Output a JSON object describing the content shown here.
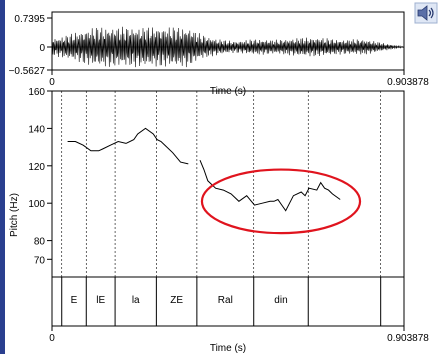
{
  "chart_data": [
    {
      "type": "line",
      "title": "",
      "xlabel": "Time (s)",
      "ylabel": "",
      "x_ticks": [
        "0",
        "0.903878"
      ],
      "y_ticks": [
        "0.7395",
        "0",
        "−0.5627"
      ],
      "xlim": [
        0,
        0.903878
      ],
      "ylim": [
        -0.5627,
        0.7395
      ],
      "grid": false
    },
    {
      "type": "line",
      "title": "",
      "xlabel": "Time (s)",
      "ylabel": "Pitch (Hz)",
      "x_ticks": [
        "0",
        "0.903878"
      ],
      "y_ticks": [
        "160",
        "140",
        "120",
        "100",
        "80",
        "70"
      ],
      "xlim": [
        0,
        0.903878
      ],
      "ylim": [
        70,
        160
      ],
      "series": [
        {
          "x": [
            0.04,
            0.06,
            0.08,
            0.1,
            0.12,
            0.13,
            0.15,
            0.17,
            0.19,
            0.21,
            0.22,
            0.24,
            0.26,
            0.27,
            0.28,
            0.29,
            0.31,
            0.33,
            0.35
          ],
          "y": [
            133,
            133,
            131,
            128,
            128,
            129,
            131,
            133,
            132,
            134,
            137,
            140,
            137,
            134,
            133,
            131,
            127,
            122,
            121
          ]
        },
        {
          "x": [
            0.38,
            0.39,
            0.4,
            0.42,
            0.44,
            0.46,
            0.48,
            0.5,
            0.52,
            0.54,
            0.56,
            0.57,
            0.58,
            0.59,
            0.6,
            0.62,
            0.64,
            0.65,
            0.66,
            0.68,
            0.69,
            0.7,
            0.71,
            0.72,
            0.74
          ],
          "y": [
            123,
            118,
            112,
            108,
            107,
            105,
            101,
            104,
            99,
            100,
            101,
            101,
            102,
            99,
            96,
            104,
            106,
            104,
            108,
            107,
            111,
            108,
            107,
            105,
            102
          ]
        }
      ],
      "segments": {
        "labels": [
          "E",
          "lE",
          "la",
          "ZE",
          "Ral",
          "din"
        ],
        "boundaries": [
          0.025,
          0.088,
          0.162,
          0.268,
          0.372,
          0.518,
          0.658,
          0.844
        ]
      },
      "annotation_ellipse": {
        "cx": 0.588,
        "cy": 101,
        "rx": 0.203,
        "ry": 17,
        "color": "#e0141e"
      },
      "grid": false
    }
  ]
}
